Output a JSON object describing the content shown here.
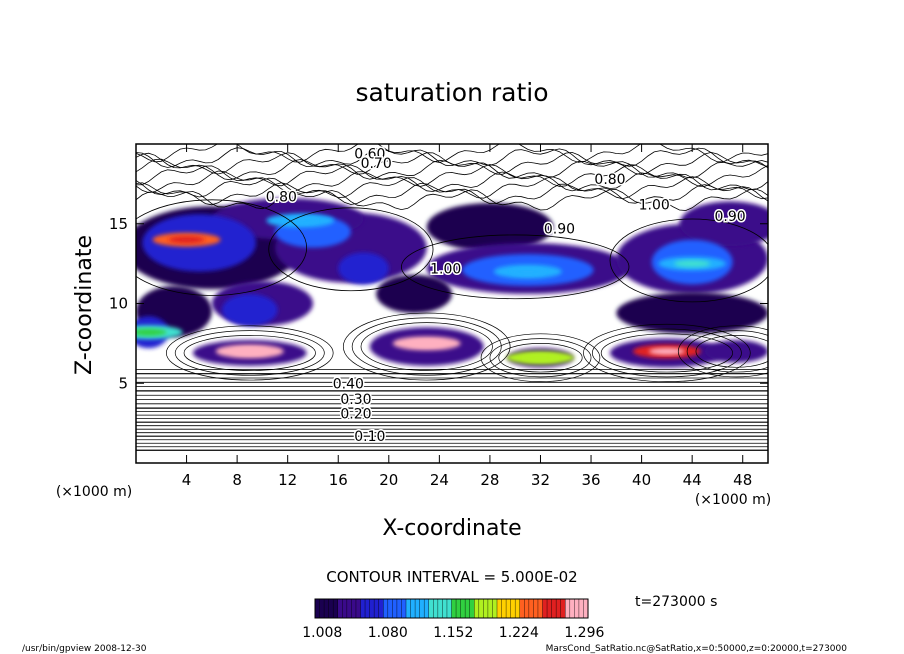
{
  "chart_data": {
    "type": "heatmap",
    "title": "saturation ratio",
    "xlabel": "X-coordinate",
    "ylabel": "Z-coordinate",
    "x_unit": "(×1000 m)",
    "y_unit": "(×1000 m)",
    "xlim": [
      0,
      50
    ],
    "ylim": [
      0,
      20
    ],
    "x_ticks": [
      "4",
      "8",
      "12",
      "16",
      "20",
      "24",
      "28",
      "32",
      "36",
      "40",
      "44",
      "48"
    ],
    "y_ticks": [
      "5",
      "10",
      "15"
    ],
    "contour_interval_text": "CONTOUR INTERVAL = 5.000E-02",
    "time_text": "t=273000 s",
    "colorbar_ticks": [
      "1.008",
      "1.080",
      "1.152",
      "1.224",
      "1.296"
    ],
    "colorbar_range": [
      1.0,
      1.3
    ],
    "contour_labels": [
      {
        "text": "0.10",
        "x": 18.5,
        "z": 1.7
      },
      {
        "text": "0.20",
        "x": 17.4,
        "z": 3.1
      },
      {
        "text": "0.30",
        "x": 17.4,
        "z": 4.0
      },
      {
        "text": "0.40",
        "x": 16.8,
        "z": 5.0
      },
      {
        "text": "0.60",
        "x": 18.5,
        "z": 19.4
      },
      {
        "text": "0.70",
        "x": 19.0,
        "z": 18.8
      },
      {
        "text": "0.80",
        "x": 37.5,
        "z": 17.8
      },
      {
        "text": "0.80",
        "x": 11.5,
        "z": 16.7
      },
      {
        "text": "0.90",
        "x": 33.5,
        "z": 14.7
      },
      {
        "text": "0.90",
        "x": 47.0,
        "z": 15.5
      },
      {
        "text": "1.00",
        "x": 41.0,
        "z": 16.2
      },
      {
        "text": "1.00",
        "x": 24.5,
        "z": 12.2
      }
    ],
    "series": [
      {
        "values": [
          {
            "x": 23,
            "z": 7.5,
            "value": 1.3
          },
          {
            "x": 9,
            "z": 7.0,
            "value": 1.29
          },
          {
            "x": 42,
            "z": 7.0,
            "value": 1.27
          },
          {
            "x": 4,
            "z": 14.0,
            "value": 1.24
          },
          {
            "x": 32,
            "z": 6.6,
            "value": 1.18
          },
          {
            "x": 44,
            "z": 12.5,
            "value": 1.12
          },
          {
            "x": 31,
            "z": 12.0,
            "value": 1.1
          },
          {
            "x": 13,
            "z": 15.2,
            "value": 1.1
          },
          {
            "x": 1,
            "z": 8.2,
            "value": 1.14
          }
        ]
      }
    ]
  },
  "footer": {
    "left": "/usr/bin/gpview   2008-12-30",
    "right": "MarsCond_SatRatio.nc@SatRatio,x=0:50000,z=0:20000,t=273000"
  },
  "colors": {
    "text": "#000000",
    "background": "#ffffff",
    "colormap": [
      "#1a0050",
      "#3a0a8a",
      "#2020d0",
      "#2060ff",
      "#20b0ff",
      "#40e0d0",
      "#30d040",
      "#b0f020",
      "#ffd000",
      "#ff6020",
      "#e02020",
      "#ffb0c0"
    ]
  }
}
